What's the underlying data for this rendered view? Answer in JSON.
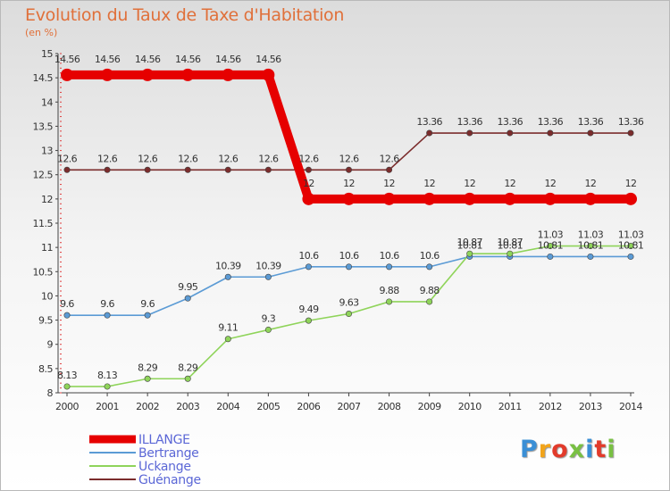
{
  "title": "Evolution du Taux de Taxe d'Habitation",
  "subtitle": "(en %)",
  "logo": {
    "text": "Proxiti",
    "colors": [
      "#3a8fd6",
      "#f2a41a",
      "#e23b2b",
      "#79c043",
      "#3a8fd6",
      "#e23b2b",
      "#79c043"
    ]
  },
  "chart_data": {
    "type": "line",
    "title": "Evolution du Taux de Taxe d'Habitation",
    "ylabel": "(en %)",
    "x": [
      "2000",
      "2001",
      "2002",
      "2003",
      "2004",
      "2005",
      "2006",
      "2007",
      "2008",
      "2009",
      "2010",
      "2011",
      "2012",
      "2013",
      "2014"
    ],
    "ylim": [
      8,
      15
    ],
    "yticks": [
      "8",
      "8.5",
      "9",
      "9.5",
      "10",
      "10.5",
      "11",
      "11.5",
      "12",
      "12.5",
      "13",
      "13.5",
      "14",
      "14.5",
      "15"
    ],
    "grid": false,
    "legend_position": "bottom-left",
    "series": [
      {
        "name": "ILLANGE",
        "color": "#e60000",
        "bold": true,
        "values": [
          14.56,
          14.56,
          14.56,
          14.56,
          14.56,
          14.56,
          12,
          12,
          12,
          12,
          12,
          12,
          12,
          12,
          12
        ],
        "labels": [
          "14.56",
          "14.56",
          "14.56",
          "14.56",
          "14.56",
          "14.56",
          "12",
          "12",
          "12",
          "12",
          "12",
          "12",
          "12",
          "12",
          "12"
        ]
      },
      {
        "name": "Bertrange",
        "color": "#5b9bd5",
        "bold": false,
        "values": [
          9.6,
          9.6,
          9.6,
          9.95,
          10.39,
          10.39,
          10.6,
          10.6,
          10.6,
          10.6,
          10.81,
          10.81,
          10.81,
          10.81,
          10.81
        ],
        "labels": [
          "9.6",
          "9.6",
          "9.6",
          "9.95",
          "10.39",
          "10.39",
          "10.6",
          "10.6",
          "10.6",
          "10.6",
          "10.81",
          "10.81",
          "10.81",
          "10.81",
          "10.81"
        ]
      },
      {
        "name": "Uckange",
        "color": "#8fd45a",
        "bold": false,
        "values": [
          8.13,
          8.13,
          8.29,
          8.29,
          9.11,
          9.3,
          9.49,
          9.63,
          9.88,
          9.88,
          10.87,
          10.87,
          11.03,
          11.03,
          11.03
        ],
        "labels": [
          "8.13",
          "8.13",
          "8.29",
          "8.29",
          "9.11",
          "9.3",
          "9.49",
          "9.63",
          "9.88",
          "9.88",
          "10.87",
          "10.87",
          "11.03",
          "11.03",
          "11.03"
        ]
      },
      {
        "name": "Guénange",
        "color": "#7b2c2c",
        "bold": false,
        "values": [
          12.6,
          12.6,
          12.6,
          12.6,
          12.6,
          12.6,
          12.6,
          12.6,
          12.6,
          13.36,
          13.36,
          13.36,
          13.36,
          13.36,
          13.36
        ],
        "labels": [
          "12.6",
          "12.6",
          "12.6",
          "12.6",
          "12.6",
          "12.6",
          "12.6",
          "12.6",
          "12.6",
          "13.36",
          "13.36",
          "13.36",
          "13.36",
          "13.36",
          "13.36"
        ]
      }
    ]
  }
}
